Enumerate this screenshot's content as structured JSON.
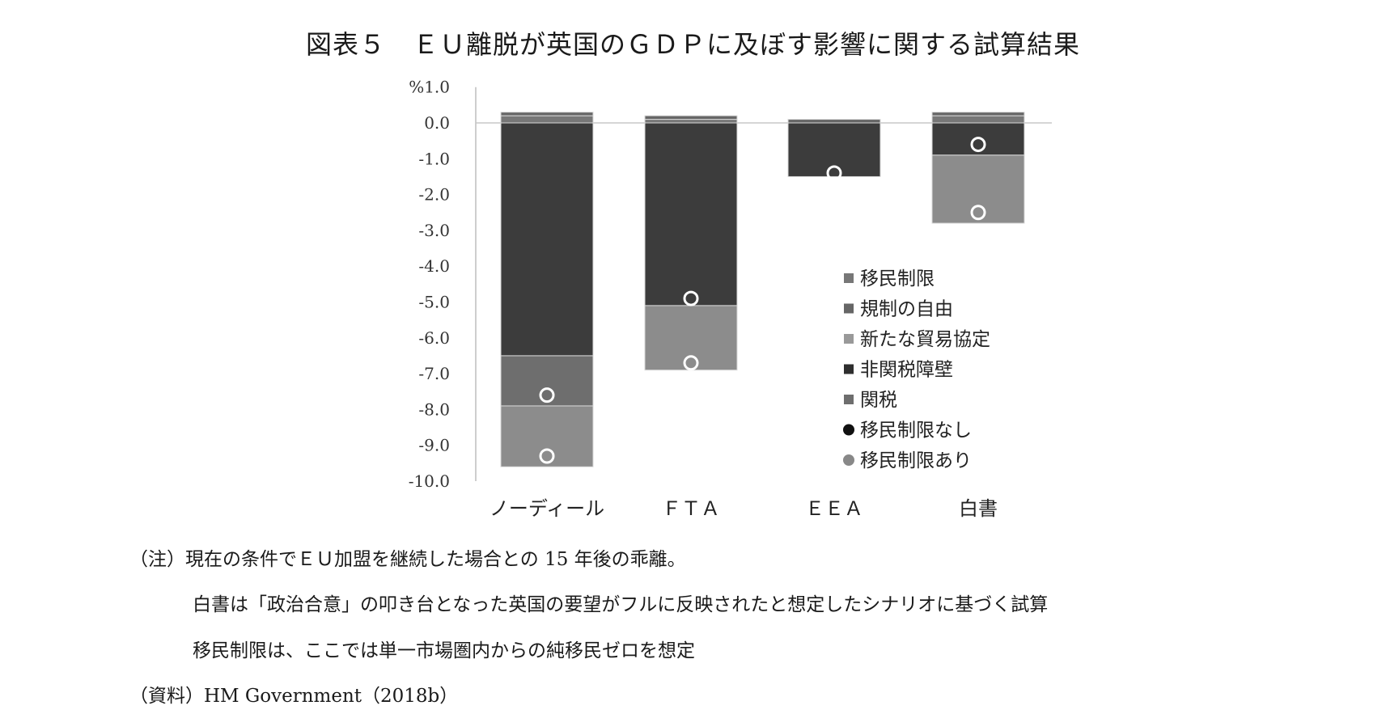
{
  "chart_data": {
    "type": "bar",
    "stacked": true,
    "title": "図表５　ＥＵ離脱が英国のＧＤＰに及ぼす影響に関する試算結果",
    "categories": [
      "ノーディール",
      "ＦＴＡ",
      "ＥＥＡ",
      "白書"
    ],
    "ylim": [
      -10.0,
      1.0
    ],
    "yticks": [
      "%1.0",
      "0.0",
      "-1.0",
      "-2.0",
      "-3.0",
      "-4.0",
      "-5.0",
      "-6.0",
      "-7.0",
      "-8.0",
      "-9.0",
      "-10.0"
    ],
    "grid": false,
    "legend_position": "bottom-right",
    "series": [
      {
        "name": "移民制限",
        "kind": "bar",
        "color": "#777777",
        "values": [
          0.2,
          0.1,
          0.0,
          0.2
        ]
      },
      {
        "name": "規制の自由",
        "kind": "bar",
        "color": "#666666",
        "values": [
          0.1,
          0.1,
          0.1,
          0.1
        ]
      },
      {
        "name": "新たな貿易協定",
        "kind": "bar",
        "color": "#999999",
        "values": [
          0.0,
          0.0,
          0.0,
          0.0
        ]
      },
      {
        "name": "非関税障壁",
        "kind": "bar",
        "color": "#3c3c3c",
        "values": [
          -6.5,
          -5.1,
          -1.5,
          -0.9
        ]
      },
      {
        "name": "関税",
        "kind": "bar",
        "color": "#6e6e6e",
        "values": [
          -1.4,
          0.0,
          0.0,
          0.0
        ]
      },
      {
        "name": "新たな貿易協定(残余)",
        "kind": "bar-residual",
        "color": "#8c8c8c",
        "values": [
          -1.7,
          -1.8,
          0.0,
          -1.9
        ]
      },
      {
        "name": "移民制限なし",
        "kind": "marker",
        "color": "#222222",
        "values": [
          -7.6,
          -4.9,
          -1.4,
          -0.6
        ]
      },
      {
        "name": "移民制限あり",
        "kind": "marker",
        "color": "#888888",
        "values": [
          -9.3,
          -6.7,
          null,
          -2.5
        ]
      }
    ],
    "legend": [
      {
        "label": "移民制限",
        "shape": "square",
        "color": "#777777"
      },
      {
        "label": "規制の自由",
        "shape": "square",
        "color": "#666666"
      },
      {
        "label": "新たな貿易協定",
        "shape": "square",
        "color": "#999999"
      },
      {
        "label": "非関税障壁",
        "shape": "square",
        "color": "#2e2e2e"
      },
      {
        "label": "関税",
        "shape": "square",
        "color": "#6e6e6e"
      },
      {
        "label": "移民制限なし",
        "shape": "circle",
        "color": "#111111"
      },
      {
        "label": "移民制限あり",
        "shape": "circle",
        "color": "#888888"
      }
    ]
  },
  "notes": {
    "note1": "（注）現在の条件でＥＵ加盟を継続した場合との 15 年後の乖離。",
    "note2": "白書は「政治合意」の叩き台となった英国の要望がフルに反映されたと想定したシナリオに基づく試算",
    "note3": "移民制限は、ここでは単一市場圏内からの純移民ゼロを想定",
    "source": "（資料）HM Government（2018b）"
  }
}
